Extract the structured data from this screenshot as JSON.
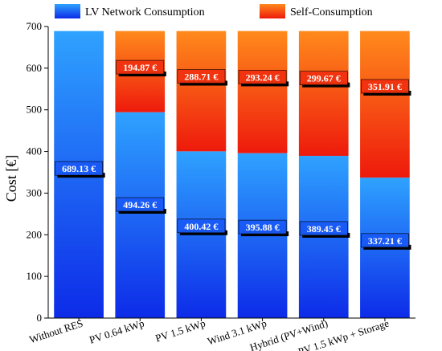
{
  "chart_data": {
    "type": "bar",
    "stacked": true,
    "title": "",
    "xlabel": "",
    "ylabel": "Cost [€]",
    "ylim": [
      0,
      700
    ],
    "yticks": [
      0,
      100,
      200,
      300,
      400,
      500,
      600,
      700
    ],
    "grid": false,
    "legend_position": "top",
    "categories": [
      "Without RES",
      "PV 0.64 kWp",
      "PV 1.5 kWp",
      "Wind 3.1 kWp",
      "Hybrid (PV+Wind)",
      "PV 1.5 kWp + Storage"
    ],
    "series": [
      {
        "name": "LV Network Consumption",
        "values": [
          689.13,
          494.26,
          400.42,
          395.88,
          389.45,
          337.21
        ],
        "labels": [
          "689.13 €",
          "494.26 €",
          "400.42 €",
          "395.88 €",
          "389.45 €",
          "337.21 €"
        ],
        "colors": [
          "#0d2be8",
          "#2fa2ff"
        ]
      },
      {
        "name": "Self-Consumption",
        "values": [
          0,
          194.87,
          288.71,
          293.24,
          299.67,
          351.91
        ],
        "labels": [
          "",
          "194.87 €",
          "288.71 €",
          "293.24 €",
          "299.67 €",
          "351.91 €"
        ],
        "colors": [
          "#ee1a0c",
          "#ff8a1c"
        ]
      }
    ]
  }
}
